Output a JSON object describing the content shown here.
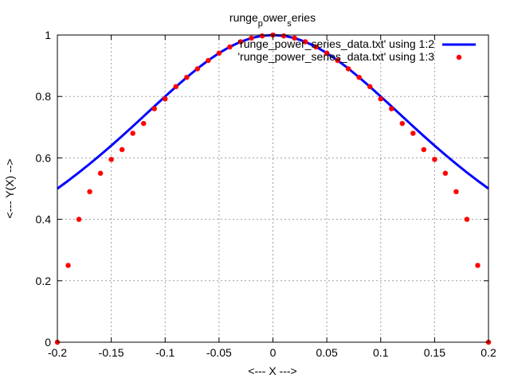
{
  "chart_data": {
    "type": "line",
    "title_main": "runge",
    "title_sub1": "p",
    "title_mid": "ower",
    "title_sub2": "s",
    "title_end": "eries",
    "xlabel": "<--- X --->",
    "ylabel": "<--- Y(X) -->",
    "xlim": [
      -0.2,
      0.2
    ],
    "ylim": [
      0,
      1
    ],
    "xticks": [
      "-0.2",
      "-0.15",
      "-0.1",
      "-0.05",
      "0",
      "0.05",
      "0.1",
      "0.15",
      "0.2"
    ],
    "yticks": [
      "0",
      "0.2",
      "0.4",
      "0.6",
      "0.8",
      "1"
    ],
    "grid": true,
    "legend_position": "top-right",
    "series": [
      {
        "name": "'runge_power_series_data.txt' using 1:2",
        "style": "line",
        "color": "#0000ff",
        "x": [
          -0.2,
          -0.19,
          -0.18,
          -0.17,
          -0.16,
          -0.15,
          -0.14,
          -0.13,
          -0.12,
          -0.11,
          -0.1,
          -0.09,
          -0.08,
          -0.07,
          -0.06,
          -0.05,
          -0.04,
          -0.03,
          -0.02,
          -0.01,
          0,
          0.01,
          0.02,
          0.03,
          0.04,
          0.05,
          0.06,
          0.07,
          0.08,
          0.09,
          0.1,
          0.11,
          0.12,
          0.13,
          0.14,
          0.15,
          0.16,
          0.17,
          0.18,
          0.19,
          0.2
        ],
        "y": [
          0.5,
          0.5256,
          0.5525,
          0.5806,
          0.6098,
          0.64,
          0.6711,
          0.7029,
          0.7353,
          0.7678,
          0.8,
          0.8316,
          0.8621,
          0.8909,
          0.9174,
          0.9412,
          0.9615,
          0.978,
          0.9901,
          0.9975,
          1,
          0.9975,
          0.9901,
          0.978,
          0.9615,
          0.9412,
          0.9174,
          0.8909,
          0.8621,
          0.8316,
          0.8,
          0.7678,
          0.7353,
          0.7029,
          0.6711,
          0.64,
          0.6098,
          0.5806,
          0.5525,
          0.5256,
          0.5
        ]
      },
      {
        "name": "'runge_power_series_data.txt' using 1:3",
        "style": "points",
        "color": "#ff0000",
        "x": [
          -0.2,
          -0.19,
          -0.18,
          -0.17,
          -0.16,
          -0.15,
          -0.14,
          -0.13,
          -0.12,
          -0.11,
          -0.1,
          -0.09,
          -0.08,
          -0.07,
          -0.06,
          -0.05,
          -0.04,
          -0.03,
          -0.02,
          -0.01,
          0,
          0.01,
          0.02,
          0.03,
          0.04,
          0.05,
          0.06,
          0.07,
          0.08,
          0.09,
          0.1,
          0.11,
          0.12,
          0.13,
          0.14,
          0.15,
          0.16,
          0.17,
          0.18,
          0.19,
          0.2
        ],
        "y": [
          0.0,
          0.25,
          0.4,
          0.49,
          0.55,
          0.595,
          0.627,
          0.68,
          0.712,
          0.76,
          0.792,
          0.832,
          0.862,
          0.89,
          0.917,
          0.941,
          0.961,
          0.978,
          0.99,
          0.997,
          1.0,
          0.997,
          0.99,
          0.978,
          0.961,
          0.941,
          0.917,
          0.89,
          0.862,
          0.832,
          0.792,
          0.76,
          0.712,
          0.68,
          0.627,
          0.595,
          0.55,
          0.49,
          0.4,
          0.25,
          0.0
        ]
      }
    ]
  }
}
